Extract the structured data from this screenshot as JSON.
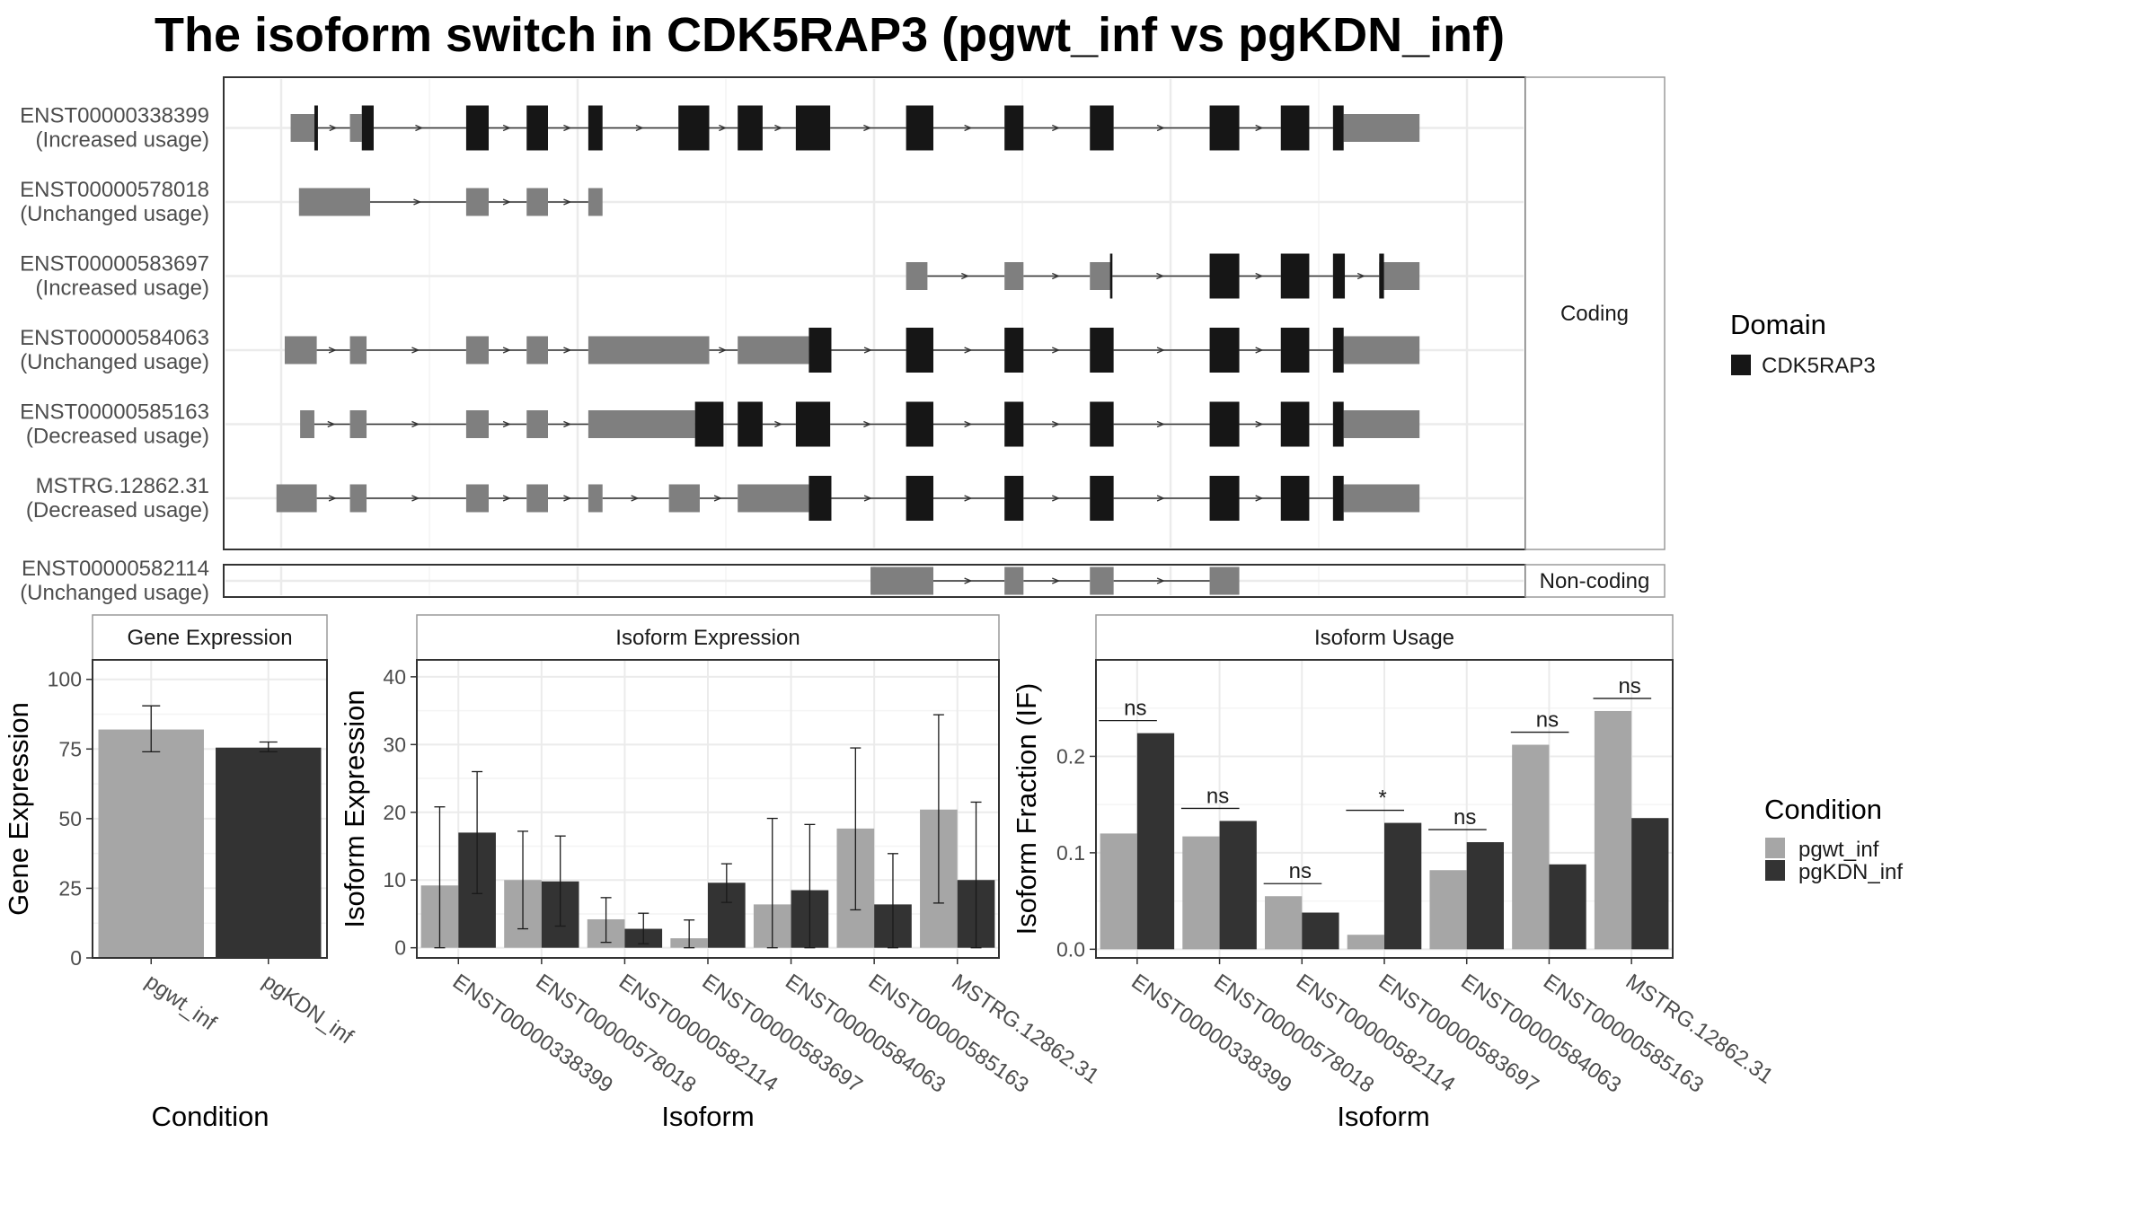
{
  "title": "The isoform switch in CDK5RAP3 (pgwt_inf vs pgKDN_inf)",
  "colors": {
    "domain": "#161616",
    "utr": "#7f7f7f",
    "intron": "#333333",
    "grid": "#ebebeb",
    "frame": "#4d4d4d",
    "strip_fill": "#ffffff",
    "pgwt_inf": "#a6a6a6",
    "pgKDN_inf": "#333333"
  },
  "structure": {
    "coding_label": "Coding",
    "noncoding_label": "Non-coding",
    "domain_legend_title": "Domain",
    "domain_legend_item": "CDK5RAP3",
    "tx_range": [
      0,
      1000
    ],
    "tracks": [
      {
        "id": "ENST00000338399",
        "usage": "(Increased usage)",
        "group": "coding",
        "utr": [
          [
            8,
            28
          ],
          [
            58,
            68
          ],
          [
            896,
            960
          ]
        ],
        "cds": [
          [
            28,
            31
          ],
          [
            68,
            78
          ],
          [
            156,
            175
          ],
          [
            207,
            225
          ],
          [
            259,
            271
          ],
          [
            335,
            361
          ],
          [
            385,
            406
          ],
          [
            434,
            463
          ],
          [
            527,
            550
          ],
          [
            610,
            626
          ],
          [
            682,
            702
          ],
          [
            783,
            808
          ],
          [
            843,
            867
          ],
          [
            887,
            896
          ]
        ]
      },
      {
        "id": "ENST00000578018",
        "usage": "(Unchanged usage)",
        "group": "coding",
        "utr": [
          [
            15,
            75
          ],
          [
            156,
            175
          ],
          [
            207,
            225
          ],
          [
            259,
            271
          ]
        ],
        "cds": []
      },
      {
        "id": "ENST00000583697",
        "usage": "(Increased usage)",
        "group": "coding",
        "utr": [
          [
            527,
            545
          ],
          [
            610,
            626
          ],
          [
            682,
            700
          ],
          [
            926,
            960
          ]
        ],
        "cds": [
          [
            699,
            701
          ],
          [
            783,
            808
          ],
          [
            843,
            867
          ],
          [
            887,
            897
          ],
          [
            926,
            930
          ]
        ]
      },
      {
        "id": "ENST00000584063",
        "usage": "(Unchanged usage)",
        "group": "coding",
        "utr": [
          [
            3,
            30
          ],
          [
            58,
            72
          ],
          [
            156,
            175
          ],
          [
            207,
            225
          ],
          [
            259,
            361
          ],
          [
            385,
            445
          ],
          [
            896,
            960
          ]
        ],
        "cds": [
          [
            445,
            464
          ],
          [
            527,
            550
          ],
          [
            610,
            626
          ],
          [
            682,
            702
          ],
          [
            783,
            808
          ],
          [
            843,
            867
          ],
          [
            887,
            896
          ]
        ]
      },
      {
        "id": "ENST00000585163",
        "usage": "(Decreased usage)",
        "group": "coding",
        "utr": [
          [
            16,
            28
          ],
          [
            58,
            72
          ],
          [
            156,
            175
          ],
          [
            207,
            225
          ],
          [
            259,
            349
          ],
          [
            896,
            960
          ]
        ],
        "cds": [
          [
            349,
            373
          ],
          [
            385,
            406
          ],
          [
            434,
            463
          ],
          [
            527,
            550
          ],
          [
            610,
            626
          ],
          [
            682,
            702
          ],
          [
            783,
            808
          ],
          [
            843,
            867
          ],
          [
            887,
            896
          ]
        ]
      },
      {
        "id": "MSTRG.12862.31",
        "usage": "(Decreased usage)",
        "group": "coding",
        "utr": [
          [
            -4,
            30
          ],
          [
            58,
            72
          ],
          [
            156,
            175
          ],
          [
            207,
            225
          ],
          [
            259,
            271
          ],
          [
            327,
            353
          ],
          [
            385,
            445
          ],
          [
            896,
            960
          ]
        ],
        "cds": [
          [
            445,
            464
          ],
          [
            527,
            550
          ],
          [
            610,
            626
          ],
          [
            682,
            702
          ],
          [
            783,
            808
          ],
          [
            843,
            867
          ],
          [
            887,
            896
          ]
        ]
      },
      {
        "id": "ENST00000582114",
        "usage": "(Unchanged usage)",
        "group": "noncoding",
        "utr": [
          [
            497,
            550
          ],
          [
            610,
            626
          ],
          [
            682,
            702
          ],
          [
            783,
            808
          ]
        ],
        "cds": []
      }
    ]
  },
  "chart_data": [
    {
      "type": "bar",
      "title": "Gene Expression",
      "xlabel": "Condition",
      "ylabel": "Gene Expression",
      "categories": [
        "pgwt_inf",
        "pgKDN_inf"
      ],
      "values": [
        82,
        75.5
      ],
      "error_low": [
        74,
        74
      ],
      "error_high": [
        90.5,
        77.5
      ],
      "ylim": [
        0,
        107
      ],
      "yticks": [
        0,
        25,
        50,
        75,
        100
      ]
    },
    {
      "type": "bar",
      "title": "Isoform Expression",
      "xlabel": "Isoform",
      "ylabel": "Isoform Expression",
      "categories": [
        "ENST00000338399",
        "ENST00000578018",
        "ENST00000582114",
        "ENST00000583697",
        "ENST00000584063",
        "ENST00000585163",
        "MSTRG.12862.31"
      ],
      "series": [
        {
          "name": "pgwt_inf",
          "values": [
            9.2,
            10,
            4.2,
            1.4,
            6.4,
            17.6,
            20.4
          ],
          "error_low": [
            0,
            2.8,
            0.8,
            0,
            0,
            5.6,
            6.6
          ],
          "error_high": [
            20.8,
            17.2,
            7.4,
            4.1,
            19.1,
            29.5,
            34.4
          ]
        },
        {
          "name": "pgKDN_inf",
          "values": [
            17,
            9.8,
            2.8,
            9.6,
            8.5,
            6.4,
            10
          ],
          "error_low": [
            8,
            3.2,
            0.6,
            6.7,
            0,
            0,
            0
          ],
          "error_high": [
            26,
            16.5,
            5.1,
            12.4,
            18.2,
            13.9,
            21.5
          ]
        }
      ],
      "ylim": [
        -1.5,
        42.5
      ],
      "yticks": [
        0,
        10,
        20,
        30,
        40
      ]
    },
    {
      "type": "bar",
      "title": "Isoform Usage",
      "xlabel": "Isoform",
      "ylabel": "Isoform Fraction (IF)",
      "categories": [
        "ENST00000338399",
        "ENST00000578018",
        "ENST00000582114",
        "ENST00000583697",
        "ENST00000584063",
        "ENST00000585163",
        "MSTRG.12862.31"
      ],
      "series": [
        {
          "name": "pgwt_inf",
          "values": [
            0.12,
            0.117,
            0.055,
            0.015,
            0.082,
            0.212,
            0.247
          ]
        },
        {
          "name": "pgKDN_inf",
          "values": [
            0.224,
            0.133,
            0.038,
            0.131,
            0.111,
            0.088,
            0.136
          ]
        }
      ],
      "significance": [
        "ns",
        "ns",
        "ns",
        "*",
        "ns",
        "ns",
        "ns"
      ],
      "ylim": [
        -0.009,
        0.3
      ],
      "yticks": [
        0.0,
        0.1,
        0.2
      ],
      "ytick_labels": [
        "0.0",
        "0.1",
        "0.2"
      ]
    }
  ],
  "condition_legend": {
    "title": "Condition",
    "items": [
      "pgwt_inf",
      "pgKDN_inf"
    ]
  }
}
